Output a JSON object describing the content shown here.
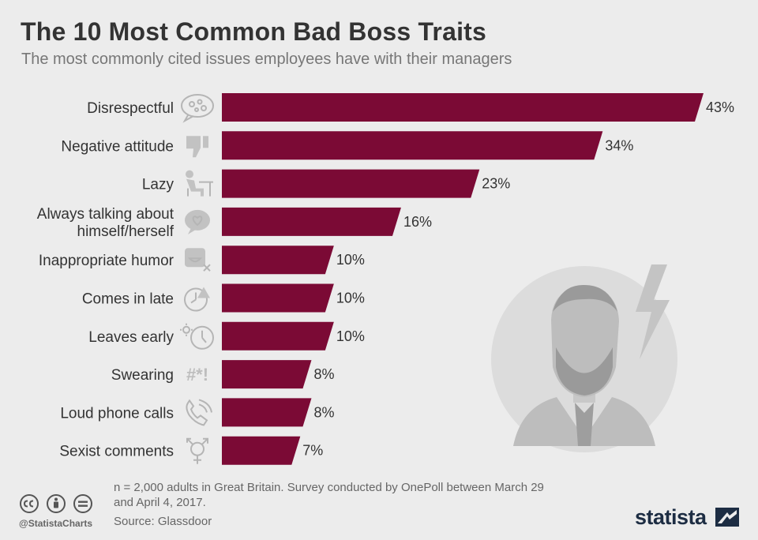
{
  "header": {
    "title": "The 10 Most Common Bad Boss Traits",
    "subtitle": "The most commonly cited issues employees have with their managers"
  },
  "chart_data": {
    "type": "bar",
    "orientation": "horizontal",
    "categories": [
      "Disrespectful",
      "Negative attitude",
      "Lazy",
      "Always talking about himself/herself",
      "Inappropriate humor",
      "Comes in late",
      "Leaves early",
      "Swearing",
      "Loud phone calls",
      "Sexist comments"
    ],
    "category_lines": [
      [
        "Disrespectful"
      ],
      [
        "Negative attitude"
      ],
      [
        "Lazy"
      ],
      [
        "Always talking about",
        "himself/herself"
      ],
      [
        "Inappropriate humor"
      ],
      [
        "Comes in late"
      ],
      [
        "Leaves early"
      ],
      [
        "Swearing"
      ],
      [
        "Loud phone calls"
      ],
      [
        "Sexist comments"
      ]
    ],
    "values": [
      43,
      34,
      23,
      16,
      10,
      10,
      10,
      8,
      8,
      7
    ],
    "value_labels": [
      "43%",
      "34%",
      "23%",
      "16%",
      "10%",
      "10%",
      "10%",
      "8%",
      "8%",
      "7%"
    ],
    "icons": [
      "speech-bubble-icon",
      "thumbs-down-icon",
      "lazy-person-icon",
      "heart-bubble-icon",
      "laughing-face-icon",
      "late-clock-icon",
      "sun-clock-icon",
      "swearing-symbols-icon",
      "phone-icon",
      "gender-symbol-icon"
    ],
    "swearing_glyph": "#*!",
    "unit": "%",
    "xlim": [
      0,
      43
    ],
    "bar_color": "#7b0a35",
    "grid": false,
    "legend": "none"
  },
  "footer": {
    "note": "n = 2,000 adults in Great Britain. Survey conducted by OnePoll between March 29 and April 4, 2017.",
    "source": "Source: Glassdoor",
    "handle": "@StatistaCharts",
    "brand": "statista"
  }
}
